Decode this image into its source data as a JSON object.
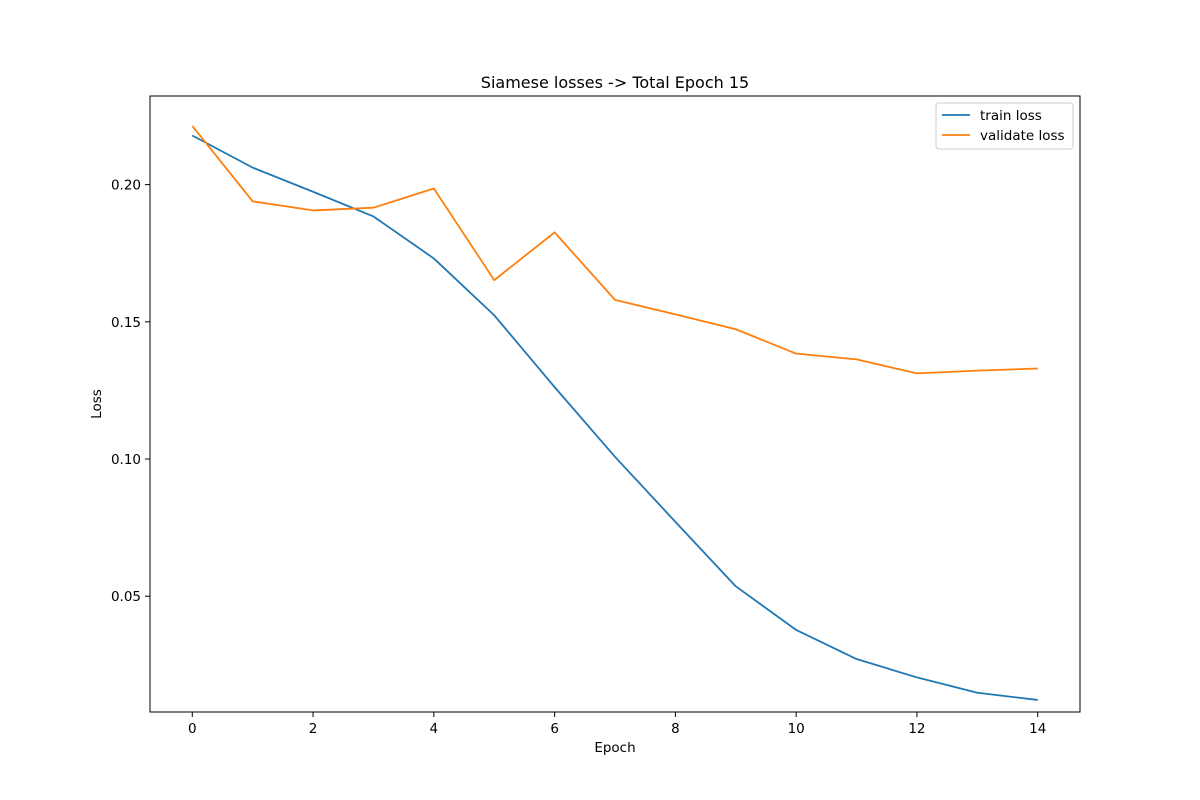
{
  "chart_data": {
    "type": "line",
    "title": "Siamese losses -> Total Epoch 15",
    "xlabel": "Epoch",
    "ylabel": "Loss",
    "x": [
      0,
      1,
      2,
      3,
      4,
      5,
      6,
      7,
      8,
      9,
      10,
      11,
      12,
      13,
      14
    ],
    "xlim": [
      -0.7,
      14.7
    ],
    "ylim": [
      0.0078,
      0.2323
    ],
    "xticks": [
      0,
      2,
      4,
      6,
      8,
      10,
      12,
      14
    ],
    "xtick_labels": [
      "0",
      "2",
      "4",
      "6",
      "8",
      "10",
      "12",
      "14"
    ],
    "yticks": [
      0.05,
      0.1,
      0.15,
      0.2
    ],
    "ytick_labels": [
      "0.05",
      "0.10",
      "0.15",
      "0.20"
    ],
    "grid": false,
    "legend_position": "top-right",
    "series": [
      {
        "name": "train loss",
        "color": "#1f77b4",
        "values": [
          0.2179,
          0.2062,
          0.1974,
          0.1884,
          0.1731,
          0.1524,
          0.1262,
          0.1008,
          0.0771,
          0.0536,
          0.0377,
          0.0271,
          0.0204,
          0.0148,
          0.0122
        ]
      },
      {
        "name": "validate loss",
        "color": "#ff7f0e",
        "values": [
          0.2214,
          0.1939,
          0.1906,
          0.1916,
          0.1986,
          0.1652,
          0.1826,
          0.158,
          0.1527,
          0.1473,
          0.1384,
          0.1363,
          0.1312,
          0.1322,
          0.133
        ]
      }
    ]
  }
}
